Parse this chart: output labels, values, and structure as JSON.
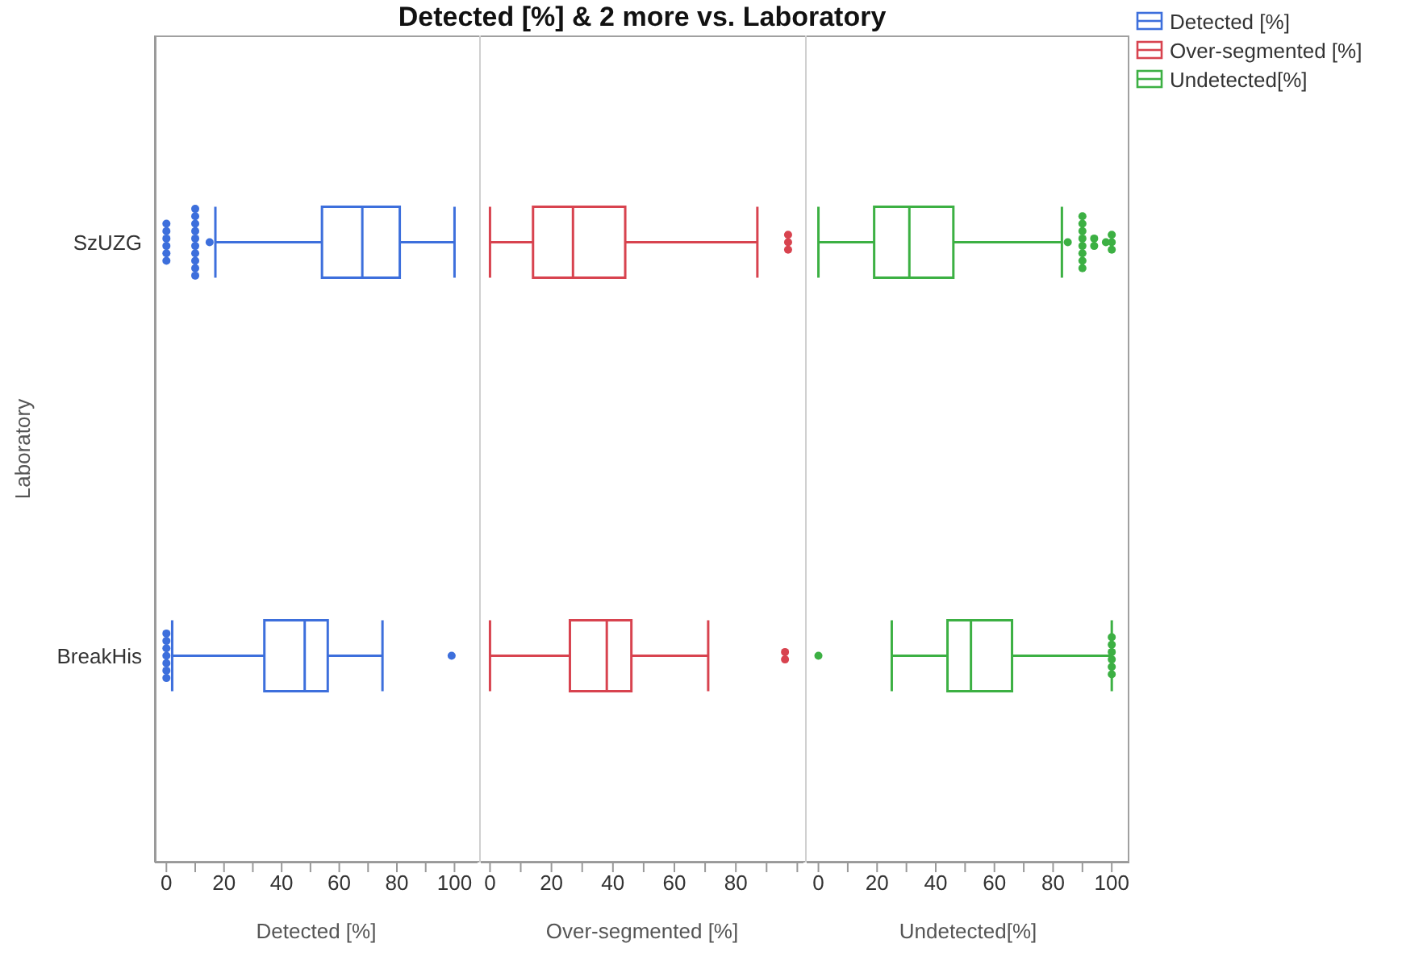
{
  "chart_data": [
    {
      "type": "box",
      "title": "Detected [%] & 2 more vs. Laboratory",
      "ylabel": "Laboratory",
      "xlabel": "Detected [%]",
      "orientation": "horizontal",
      "legend": "top right",
      "categories": [
        "SzUZG",
        "BreakHis"
      ],
      "xlim": [
        -4,
        108
      ],
      "xticks": [
        0,
        {
          "value": 10,
          "label": null
        },
        20,
        {
          "value": 30,
          "label": null
        },
        40,
        {
          "value": 50,
          "label": null
        },
        60,
        {
          "value": 70,
          "label": null
        },
        80,
        {
          "value": 90,
          "label": null
        },
        100
      ],
      "series": [
        {
          "name": "Detected [%]",
          "color": "#3d6fdc",
          "boxes": [
            {
              "low": 17,
              "q1": 54,
              "median": 68,
              "q3": 81,
              "high": 100,
              "outliers": [
                0,
                0,
                0,
                0,
                0,
                0,
                10,
                10,
                10,
                10,
                10,
                10,
                10,
                10,
                10,
                10,
                15
              ]
            },
            {
              "low": 2,
              "q1": 34,
              "median": 48,
              "q3": 56,
              "high": 75,
              "outliers": [
                0,
                0,
                0,
                0,
                0,
                0,
                0,
                99
              ]
            }
          ]
        }
      ]
    },
    {
      "type": "box",
      "xlabel": "Over-segmented [%]",
      "orientation": "horizontal",
      "legend": "top right",
      "tick_labels": "x",
      "xlim": [
        -3,
        102
      ],
      "xticks": [
        0,
        {
          "value": 10,
          "label": null
        },
        20,
        {
          "value": 30,
          "label": null
        },
        40,
        {
          "value": 50,
          "label": null
        },
        60,
        {
          "value": 70,
          "label": null
        },
        80,
        {
          "value": 90,
          "label": null
        },
        {
          "value": 100,
          "label": null
        }
      ],
      "series": [
        {
          "name": "Over-segmented [%]",
          "color": "#d8434f",
          "boxes": [
            {
              "low": 0,
              "q1": 14,
              "median": 27,
              "q3": 44,
              "high": 87,
              "outliers": [
                97,
                97,
                97
              ]
            },
            {
              "low": 0,
              "q1": 26,
              "median": 38,
              "q3": 46,
              "high": 71,
              "outliers": [
                96,
                96
              ]
            }
          ]
        }
      ]
    },
    {
      "type": "box",
      "xlabel": "Undetected[%]",
      "orientation": "horizontal",
      "legend": "top right",
      "tick_labels": "x",
      "xlim": [
        -4,
        106
      ],
      "xticks": [
        0,
        {
          "value": 10,
          "label": null
        },
        20,
        {
          "value": 30,
          "label": null
        },
        40,
        {
          "value": 50,
          "label": null
        },
        60,
        {
          "value": 70,
          "label": null
        },
        80,
        {
          "value": 90,
          "label": null
        },
        100
      ],
      "series": [
        {
          "name": "Undetected[%]",
          "color": "#3cb043",
          "boxes": [
            {
              "low": 0,
              "q1": 19,
              "median": 31,
              "q3": 46,
              "high": 83,
              "outliers": [
                85,
                90,
                90,
                90,
                90,
                90,
                90,
                90,
                90,
                94,
                94,
                98,
                100,
                100,
                100
              ]
            },
            {
              "low": 25,
              "q1": 44,
              "median": 52,
              "q3": 66,
              "high": 100,
              "outliers": [
                0,
                100,
                100,
                100,
                100,
                100,
                100
              ]
            }
          ]
        }
      ]
    }
  ]
}
